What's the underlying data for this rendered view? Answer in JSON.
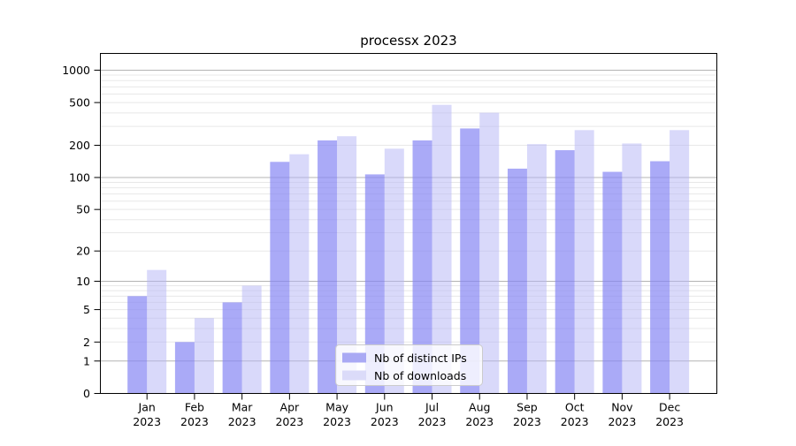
{
  "title": "processx 2023",
  "chart_data": {
    "type": "bar",
    "title": "processx 2023",
    "categories": [
      "Jan",
      "Feb",
      "Mar",
      "Apr",
      "May",
      "Jun",
      "Jul",
      "Aug",
      "Sep",
      "Oct",
      "Nov",
      "Dec"
    ],
    "year": "2023",
    "series": [
      {
        "name": "Nb of distinct IPs",
        "color": "rgba(134,134,244,0.7)",
        "swatch": "#a9a9f4",
        "values": [
          7,
          2,
          6,
          140,
          222,
          107,
          222,
          287,
          121,
          180,
          113,
          142
        ]
      },
      {
        "name": "Nb of downloads",
        "color": "rgba(180,180,245,0.5)",
        "swatch": "#dbdbf9",
        "values": [
          13,
          4,
          9,
          165,
          243,
          186,
          476,
          402,
          205,
          277,
          208,
          277
        ]
      }
    ],
    "y_axis": {
      "scale": "log1p",
      "ticks": [
        0,
        1,
        2,
        5,
        10,
        20,
        50,
        100,
        200,
        500,
        1000
      ],
      "top_value": 1380
    },
    "y_tick_labels": [
      "0",
      "1",
      "2",
      "5",
      "10",
      "20",
      "50",
      "100",
      "200",
      "500",
      "1000"
    ],
    "xlabel": "",
    "ylabel": "",
    "grid": {
      "major_lines": [
        1,
        10,
        100,
        1000
      ],
      "major_color": "#b4b4b4",
      "minor_color": "#e8e8e8"
    },
    "legend": {
      "position": "inside-bottom-center",
      "background": "rgba(255,255,255,0.8)",
      "border_color": "#cccccc"
    },
    "frame_color": "#000000"
  }
}
